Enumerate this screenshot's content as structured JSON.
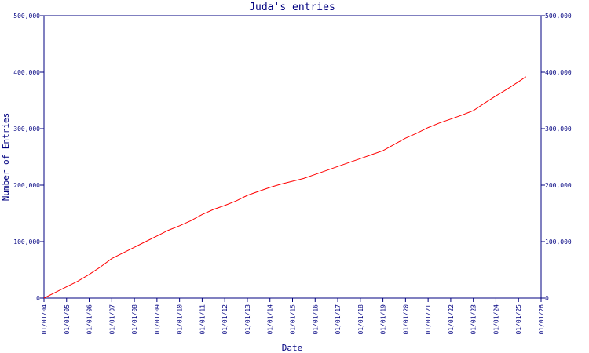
{
  "chart_data": {
    "type": "line",
    "title": "Juda's entries",
    "xlabel": "Date",
    "ylabel": "Number of Entries",
    "ylim": [
      0,
      500000
    ],
    "xlim": [
      "2004-01-01",
      "2026-01-01"
    ],
    "y_ticks": [
      0,
      100000,
      200000,
      300000,
      400000,
      500000
    ],
    "y_tick_labels": [
      "0",
      "100,000",
      "200,000",
      "300,000",
      "400,000",
      "500,000"
    ],
    "right_y_axis": true,
    "grid": false,
    "x_tick_labels": [
      "01/01/04",
      "01/01/05",
      "01/01/06",
      "01/01/07",
      "01/01/08",
      "01/01/09",
      "01/01/10",
      "01/01/11",
      "01/01/12",
      "01/01/13",
      "01/01/14",
      "01/01/15",
      "01/01/16",
      "01/01/17",
      "01/01/18",
      "01/01/19",
      "01/01/20",
      "01/01/21",
      "01/01/22",
      "01/01/23",
      "01/01/24",
      "01/01/25",
      "01/01/26"
    ],
    "series": [
      {
        "color": "#ff0000",
        "points": [
          [
            "2004-01-01",
            0
          ],
          [
            "2004-07-01",
            10000
          ],
          [
            "2005-01-01",
            20000
          ],
          [
            "2005-07-01",
            30000
          ],
          [
            "2006-01-01",
            42000
          ],
          [
            "2006-07-01",
            55000
          ],
          [
            "2007-01-01",
            70000
          ],
          [
            "2007-07-01",
            80000
          ],
          [
            "2008-01-01",
            90000
          ],
          [
            "2008-07-01",
            100000
          ],
          [
            "2009-01-01",
            110000
          ],
          [
            "2009-07-01",
            120000
          ],
          [
            "2010-01-01",
            128000
          ],
          [
            "2010-07-01",
            137000
          ],
          [
            "2011-01-01",
            148000
          ],
          [
            "2011-07-01",
            157000
          ],
          [
            "2012-01-01",
            164000
          ],
          [
            "2012-07-01",
            172000
          ],
          [
            "2013-01-01",
            182000
          ],
          [
            "2013-07-01",
            189000
          ],
          [
            "2014-01-01",
            196000
          ],
          [
            "2014-07-01",
            202000
          ],
          [
            "2015-01-01",
            207000
          ],
          [
            "2015-07-01",
            212000
          ],
          [
            "2016-01-01",
            219000
          ],
          [
            "2016-07-01",
            226000
          ],
          [
            "2017-01-01",
            233000
          ],
          [
            "2017-07-01",
            240000
          ],
          [
            "2018-01-01",
            247000
          ],
          [
            "2018-07-01",
            254000
          ],
          [
            "2019-01-01",
            261000
          ],
          [
            "2019-07-01",
            272000
          ],
          [
            "2020-01-01",
            283000
          ],
          [
            "2020-07-01",
            292000
          ],
          [
            "2021-01-01",
            302000
          ],
          [
            "2021-07-01",
            310000
          ],
          [
            "2022-01-01",
            317000
          ],
          [
            "2022-07-01",
            324000
          ],
          [
            "2023-01-01",
            332000
          ],
          [
            "2023-07-01",
            345000
          ],
          [
            "2024-01-01",
            358000
          ],
          [
            "2024-07-01",
            370000
          ],
          [
            "2025-01-01",
            383000
          ],
          [
            "2025-05-01",
            392000
          ]
        ]
      }
    ]
  }
}
